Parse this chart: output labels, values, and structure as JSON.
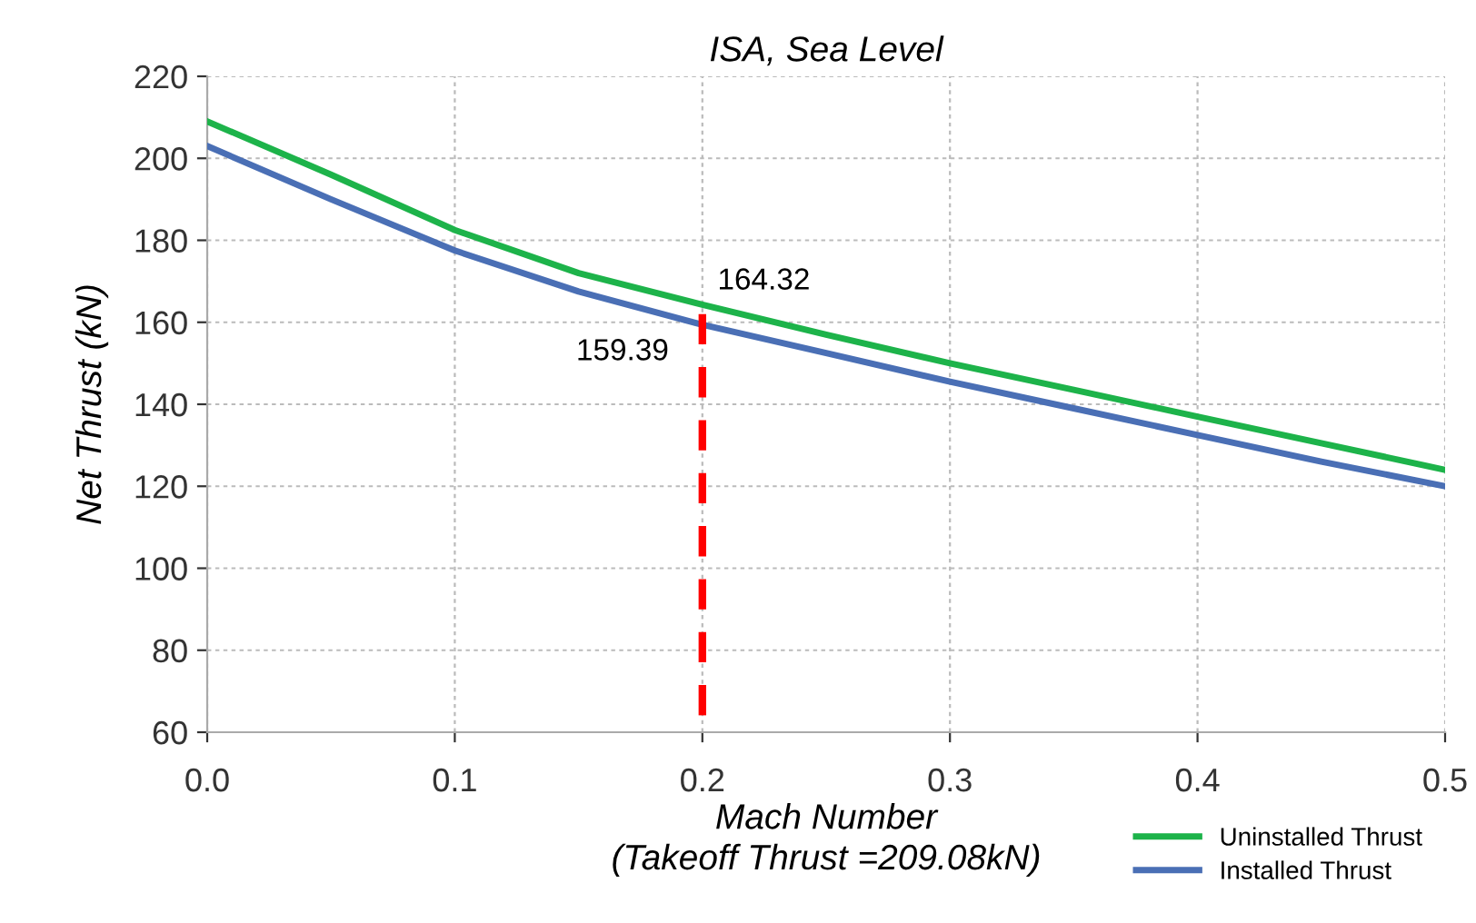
{
  "chart_data": {
    "type": "line",
    "title": "ISA, Sea Level",
    "xlabel": "Mach Number\n(Takeoff Thrust =209.08kN)",
    "ylabel": "Net Thrust (kN)",
    "x": [
      0,
      0.05,
      0.1,
      0.15,
      0.2,
      0.25,
      0.3,
      0.35,
      0.4,
      0.45,
      0.5
    ],
    "series": [
      {
        "name": "Uninstalled Thrust",
        "color": "#1db34a",
        "values": [
          209,
          196,
          182.5,
          172,
          164.3,
          157,
          150,
          143.5,
          137,
          130.5,
          124
        ]
      },
      {
        "name": "Installed Thrust",
        "color": "#4a6fb5",
        "values": [
          203,
          190,
          177.5,
          167.5,
          159.4,
          152.5,
          145.5,
          139,
          132.5,
          126,
          120
        ]
      },
      {
        "type": "line",
        "color": "#ff0000",
        "line_style": "dashed",
        "x": [
          0.2,
          0.2
        ],
        "values": [
          162,
          60
        ]
      }
    ],
    "annotations": [
      {
        "text": "164.32",
        "x": 0.2,
        "y": 164.32
      },
      {
        "text": "159.39",
        "x": 0.2,
        "y": 159.39
      }
    ],
    "xlim": [
      0,
      0.5
    ],
    "xticks": [
      {
        "value": 0,
        "label": "0.0"
      },
      0.1,
      0.2,
      0.3,
      0.4,
      0.5
    ],
    "ylim": [
      60,
      220
    ],
    "yticks": [
      60,
      80,
      100,
      120,
      140,
      160,
      180,
      200,
      220
    ],
    "grid": true,
    "legend": "bottom right",
    "line_style": "solid",
    "marker": "none"
  }
}
